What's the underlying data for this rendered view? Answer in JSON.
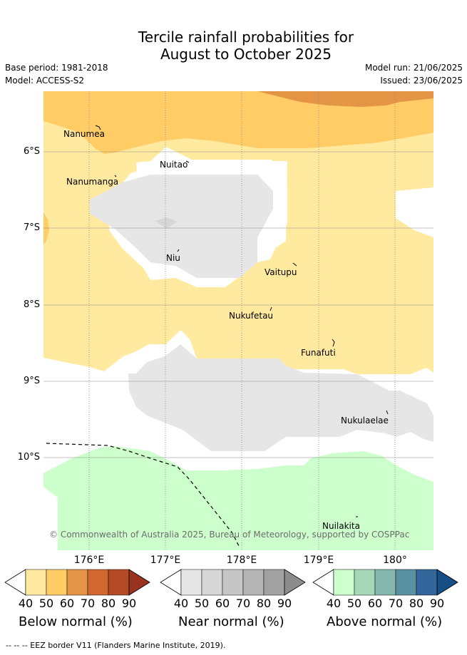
{
  "title_line1": "Tercile rainfall probabilities for",
  "title_line2": "August to October 2025",
  "meta": {
    "base_period": "Base period: 1981-2018",
    "model": "Model: ACCESS-S2",
    "model_run": "Model run: 21/06/2025",
    "issued": "Issued: 23/06/2025"
  },
  "axes": {
    "longitudes": [
      "176°E",
      "177°E",
      "178°E",
      "179°E",
      "180°"
    ],
    "latitudes": [
      "6°S",
      "7°S",
      "8°S",
      "9°S",
      "10°S"
    ]
  },
  "places": {
    "nanumea": "Nanumea",
    "nuitao": "Nuitao",
    "nanumanga": "Nanumanga",
    "niu": "Niu",
    "vaitupu": "Vaitupu",
    "nukufetau": "Nukufetau",
    "funafuti": "Funafuti",
    "nukulaelae": "Nukulaelae",
    "nuilakita": "Nuilakita"
  },
  "copyright": "© Commonwealth of Australia 2025, Bureau of Meteorology, supported by COSPPac",
  "colorbars": {
    "ticks": [
      "40",
      "50",
      "60",
      "70",
      "80",
      "90"
    ],
    "below": {
      "title": "Below normal (%)",
      "colors": [
        "#ffffff",
        "#ffeaa0",
        "#ffcc66",
        "#e39545",
        "#d0682f",
        "#b44b27",
        "#9a3220"
      ]
    },
    "near": {
      "title": "Near normal (%)",
      "colors": [
        "#ffffff",
        "#e6e6e6",
        "#d6d6d6",
        "#c6c6c6",
        "#b4b4b4",
        "#a2a2a2",
        "#8c8c8c"
      ]
    },
    "above": {
      "title": "Above normal (%)",
      "colors": [
        "#ffffff",
        "#ccffcc",
        "#a6d8b8",
        "#86b8b0",
        "#5a91a0",
        "#33669a",
        "#164e86"
      ]
    }
  },
  "map_colors": {
    "below_40_50": "#ffeaa0",
    "below_50_60": "#ffcc66",
    "below_60_70": "#e39545",
    "near_40_50": "#e6e6e6",
    "near_50_60": "#d6d6d6",
    "above_40_50": "#ccffcc",
    "gridline": "#888888",
    "eez_border": "#000000"
  },
  "footer": "--  --  -- EEZ border V11 (Flanders Marine Institute, 2019)."
}
